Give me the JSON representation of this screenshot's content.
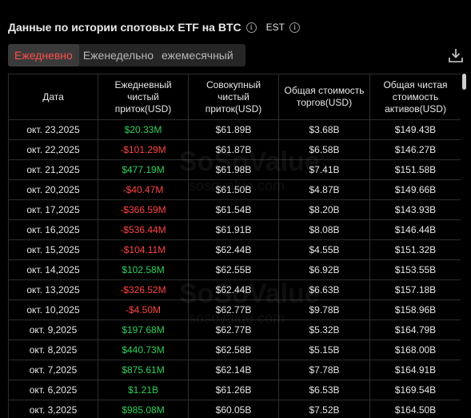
{
  "header": {
    "title": "Данные по истории спотовых ETF на BTC",
    "timezone": "EST"
  },
  "tabs": [
    {
      "label": "Ежедневно",
      "active": true
    },
    {
      "label": "Еженедельно",
      "active": false
    },
    {
      "label": "ежемесячный",
      "active": false
    }
  ],
  "table": {
    "columns": [
      "Дата",
      "Ежедневный чистый приток(USD)",
      "Совокупный чистый приток(USD)",
      "Общая стоимость торгов(USD)",
      "Общая чистая стоимость активов(USD)"
    ],
    "rows": [
      {
        "date": "окт. 23,2025",
        "daily": "$20.33M",
        "daily_sign": "pos",
        "cum": "$61.89B",
        "traded": "$3.68B",
        "assets": "$149.43B"
      },
      {
        "date": "окт. 22,2025",
        "daily": "-$101.29M",
        "daily_sign": "neg",
        "cum": "$61.87B",
        "traded": "$6.58B",
        "assets": "$146.27B"
      },
      {
        "date": "окт. 21,2025",
        "daily": "$477.19M",
        "daily_sign": "pos",
        "cum": "$61.98B",
        "traded": "$7.41B",
        "assets": "$151.58B"
      },
      {
        "date": "окт. 20,2025",
        "daily": "-$40.47M",
        "daily_sign": "neg",
        "cum": "$61.50B",
        "traded": "$4.87B",
        "assets": "$149.66B"
      },
      {
        "date": "окт. 17,2025",
        "daily": "-$366.59M",
        "daily_sign": "neg",
        "cum": "$61.54B",
        "traded": "$8.20B",
        "assets": "$143.93B"
      },
      {
        "date": "окт. 16,2025",
        "daily": "-$536.44M",
        "daily_sign": "neg",
        "cum": "$61.91B",
        "traded": "$8.08B",
        "assets": "$146.44B"
      },
      {
        "date": "окт. 15,2025",
        "daily": "-$104.11M",
        "daily_sign": "neg",
        "cum": "$62.44B",
        "traded": "$4.55B",
        "assets": "$151.32B"
      },
      {
        "date": "окт. 14,2025",
        "daily": "$102.58M",
        "daily_sign": "pos",
        "cum": "$62.55B",
        "traded": "$6.92B",
        "assets": "$153.55B"
      },
      {
        "date": "окт. 13,2025",
        "daily": "-$326.52M",
        "daily_sign": "neg",
        "cum": "$62.44B",
        "traded": "$6.63B",
        "assets": "$157.18B"
      },
      {
        "date": "окт. 10,2025",
        "daily": "-$4.50M",
        "daily_sign": "neg",
        "cum": "$62.77B",
        "traded": "$9.78B",
        "assets": "$158.96B"
      },
      {
        "date": "окт. 9,2025",
        "daily": "$197.68M",
        "daily_sign": "pos",
        "cum": "$62.77B",
        "traded": "$5.32B",
        "assets": "$164.79B"
      },
      {
        "date": "окт. 8,2025",
        "daily": "$440.73M",
        "daily_sign": "pos",
        "cum": "$62.58B",
        "traded": "$5.15B",
        "assets": "$168.00B"
      },
      {
        "date": "окт. 7,2025",
        "daily": "$875.61M",
        "daily_sign": "pos",
        "cum": "$62.14B",
        "traded": "$7.78B",
        "assets": "$164.91B"
      },
      {
        "date": "окт. 6,2025",
        "daily": "$1.21B",
        "daily_sign": "pos",
        "cum": "$61.26B",
        "traded": "$6.53B",
        "assets": "$169.54B"
      },
      {
        "date": "окт. 3,2025",
        "daily": "$985.08M",
        "daily_sign": "pos",
        "cum": "$60.05B",
        "traded": "$7.52B",
        "assets": "$164.50B"
      }
    ]
  },
  "watermark": {
    "logo": "SoSoValue",
    "url": "sosovalue.com"
  },
  "colors": {
    "positive": "#2fd05a",
    "negative": "#ff4444",
    "active_tab": "#ff4d4d",
    "background": "#000000"
  },
  "icons": {
    "title_info": "info-icon",
    "timezone_info": "info-icon",
    "download": "download-icon"
  }
}
